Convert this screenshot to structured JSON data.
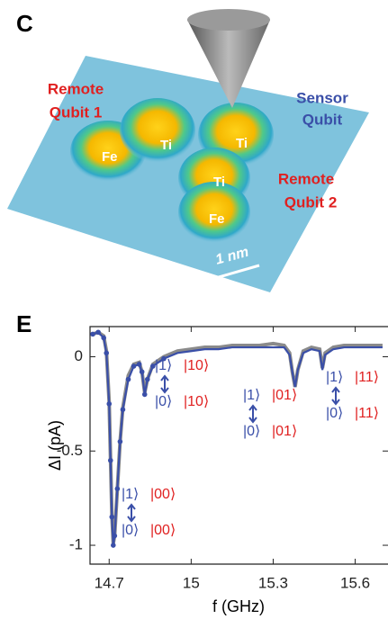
{
  "panel_c": {
    "label": "C",
    "remote_qubit_1": [
      "Remote",
      "Qubit 1"
    ],
    "sensor_qubit": [
      "Sensor",
      "Qubit"
    ],
    "remote_qubit_2": [
      "Remote",
      "Qubit 2"
    ],
    "atoms": [
      "Fe",
      "Ti",
      "Ti",
      "Ti",
      "Fe"
    ],
    "scale_bar": "1 nm"
  },
  "chart_data": {
    "type": "line",
    "panel_label": "E",
    "x_label": "f (GHz)",
    "y_label": "ΔI (pA)",
    "x": [
      14.64,
      14.66,
      14.68,
      14.69,
      14.7,
      14.705,
      14.71,
      14.715,
      14.72,
      14.73,
      14.74,
      14.75,
      14.77,
      14.79,
      14.81,
      14.82,
      14.83,
      14.84,
      14.86,
      14.9,
      14.95,
      15.0,
      15.05,
      15.1,
      15.15,
      15.2,
      15.25,
      15.3,
      15.34,
      15.36,
      15.37,
      15.38,
      15.39,
      15.41,
      15.44,
      15.47,
      15.48,
      15.49,
      15.52,
      15.56,
      15.6,
      15.65,
      15.7
    ],
    "series": [
      {
        "color": "#8a8a8a",
        "values": [
          0.12,
          0.13,
          0.11,
          0.03,
          -0.24,
          -0.54,
          -0.84,
          -0.99,
          -0.95,
          -0.7,
          -0.45,
          -0.27,
          -0.1,
          -0.04,
          -0.03,
          -0.08,
          -0.19,
          -0.12,
          -0.04,
          0.0,
          0.03,
          0.04,
          0.05,
          0.05,
          0.06,
          0.06,
          0.06,
          0.07,
          0.06,
          0.02,
          -0.08,
          -0.16,
          -0.07,
          0.03,
          0.05,
          0.04,
          -0.06,
          0.02,
          0.05,
          0.06,
          0.06,
          0.06,
          0.06
        ]
      },
      {
        "color": "#3a4fa8",
        "values": [
          0.12,
          0.13,
          0.1,
          0.02,
          -0.25,
          -0.55,
          -0.85,
          -1.0,
          -0.95,
          -0.7,
          -0.45,
          -0.28,
          -0.12,
          -0.05,
          -0.04,
          -0.08,
          -0.2,
          -0.12,
          -0.05,
          -0.01,
          0.02,
          0.03,
          0.04,
          0.04,
          0.05,
          0.05,
          0.05,
          0.05,
          0.05,
          0.01,
          -0.08,
          -0.16,
          -0.07,
          0.02,
          0.04,
          0.03,
          -0.07,
          0.01,
          0.04,
          0.05,
          0.05,
          0.05,
          0.05
        ]
      }
    ],
    "xlim": [
      14.63,
      15.72
    ],
    "ylim": [
      -1.1,
      0.16
    ],
    "xticks": [
      14.7,
      15,
      15.3,
      15.6
    ],
    "yticks": [
      0,
      -0.5,
      -1
    ],
    "annotations": [
      {
        "top": [
          "|1⟩",
          "|00⟩"
        ],
        "bottom": [
          "|0⟩",
          "|00⟩"
        ]
      },
      {
        "top": [
          "|1⟩",
          "|10⟩"
        ],
        "bottom": [
          "|0⟩",
          "|10⟩"
        ]
      },
      {
        "top": [
          "|1⟩",
          "|01⟩"
        ],
        "bottom": [
          "|0⟩",
          "|01⟩"
        ]
      },
      {
        "top": [
          "|1⟩",
          "|11⟩"
        ],
        "bottom": [
          "|0⟩",
          "|11⟩"
        ]
      }
    ]
  }
}
